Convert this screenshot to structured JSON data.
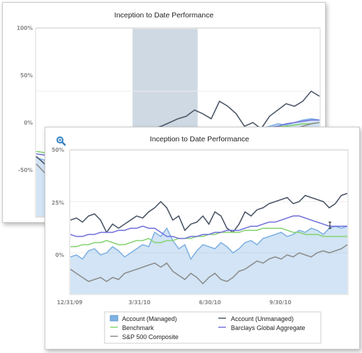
{
  "chart_data": [
    {
      "type": "line",
      "title": "Inception to Date Performance",
      "ylim": [
        -50,
        100
      ],
      "yticks": [
        "100%",
        "50%",
        "0%",
        "-50%"
      ],
      "highlight_band": {
        "from": 0.34,
        "to": 0.57,
        "color": "#c7d2de"
      },
      "series": [
        {
          "name": "Account (Managed)",
          "color": "#7fb1e3",
          "style": "area",
          "values": [
            -3,
            -5,
            -8,
            -6,
            -4,
            -2,
            -3,
            0,
            2,
            4,
            3,
            5,
            7,
            9,
            12,
            10,
            11,
            13,
            14,
            12,
            13,
            15,
            14,
            16,
            17,
            19,
            18,
            20,
            22,
            24,
            23,
            25,
            27,
            28,
            27
          ]
        },
        {
          "name": "Account (Unmanaged)",
          "color": "#4a5566",
          "style": "line",
          "values": [
            -2,
            -8,
            -12,
            -15,
            -10,
            -5,
            0,
            3,
            5,
            8,
            10,
            12,
            16,
            18,
            20,
            22,
            25,
            28,
            30,
            35,
            32,
            28,
            42,
            38,
            32,
            22,
            25,
            20,
            30,
            35,
            40,
            38,
            42,
            50,
            46
          ]
        },
        {
          "name": "Benchmark",
          "color": "#86d474",
          "style": "line",
          "values": [
            2,
            1,
            0,
            1,
            2,
            3,
            4,
            5,
            6,
            7,
            7,
            8,
            9,
            10,
            11,
            12,
            12,
            13,
            14,
            14,
            15,
            16,
            17,
            17,
            18,
            19,
            19,
            20,
            21,
            22,
            22,
            23,
            24,
            24,
            25
          ]
        },
        {
          "name": "Barclays Global Aggregate",
          "color": "#7474dd",
          "style": "line",
          "values": [
            0,
            -1,
            0,
            1,
            2,
            2,
            3,
            4,
            5,
            5,
            6,
            7,
            8,
            9,
            10,
            10,
            11,
            12,
            13,
            12,
            11,
            14,
            15,
            16,
            17,
            18,
            19,
            20,
            21,
            22,
            24,
            25,
            26,
            27,
            27
          ]
        },
        {
          "name": "S&P 500 Composite",
          "color": "#8c8c8c",
          "style": "line",
          "values": [
            -8,
            -15,
            -22,
            -25,
            -28,
            -30,
            -26,
            -22,
            -20,
            -15,
            -10,
            -5,
            0,
            2,
            -5,
            -10,
            -8,
            -5,
            -2,
            -4,
            -6,
            0,
            4,
            8,
            10,
            12,
            14,
            16,
            15,
            18,
            17,
            20,
            22,
            24,
            25
          ]
        }
      ]
    },
    {
      "type": "line",
      "title": "Inception to Date Performance",
      "xlabel": "",
      "ylabel": "",
      "ylim": [
        -20,
        50
      ],
      "yticks": [
        "50%",
        "25%",
        "0%"
      ],
      "x_tick_labels": [
        "12/31/09",
        "3/31/10",
        "6/30/10",
        "9/30/10"
      ],
      "zoom_icon": "magnifier-icon",
      "series": [
        {
          "name": "Account (Managed)",
          "color": "#7fb1e3",
          "style": "area",
          "values": [
            -2,
            -1,
            -3,
            1,
            2,
            -1,
            0,
            3,
            1,
            -2,
            0,
            2,
            4,
            3,
            10,
            8,
            12,
            6,
            2,
            4,
            -3,
            1,
            4,
            3,
            2,
            5,
            3,
            0,
            2,
            5,
            6,
            4,
            7,
            8,
            9,
            10,
            8,
            9,
            11,
            10,
            12,
            11,
            9,
            12,
            13,
            12,
            13
          ]
        },
        {
          "name": "Account (Unmanaged)",
          "color": "#4a5566",
          "style": "line",
          "values": [
            16,
            17,
            15,
            18,
            19,
            16,
            10,
            14,
            12,
            14,
            16,
            18,
            17,
            20,
            22,
            25,
            22,
            16,
            18,
            11,
            14,
            15,
            18,
            14,
            20,
            18,
            12,
            10,
            14,
            20,
            18,
            21,
            22,
            24,
            25,
            26,
            27,
            24,
            25,
            28,
            27,
            26,
            25,
            22,
            24,
            28,
            29
          ]
        },
        {
          "name": "Benchmark",
          "color": "#86d474",
          "style": "line",
          "values": [
            3,
            3,
            4,
            4,
            5,
            5,
            6,
            5,
            4,
            4,
            5,
            6,
            6,
            7,
            5,
            5,
            6,
            6,
            7,
            7,
            7,
            8,
            8,
            9,
            9,
            10,
            10,
            10,
            10,
            11,
            11,
            11,
            12,
            12,
            12,
            12,
            11,
            10,
            10,
            9,
            9,
            9,
            8,
            8,
            8,
            8,
            8
          ]
        },
        {
          "name": "Barclays Global Aggregate",
          "color": "#7474dd",
          "style": "line",
          "values": [
            9,
            8,
            8,
            9,
            9,
            10,
            10,
            10,
            11,
            11,
            12,
            12,
            13,
            12,
            12,
            10,
            8,
            8,
            7,
            7,
            8,
            8,
            9,
            9,
            10,
            10,
            11,
            11,
            11,
            12,
            13,
            13,
            14,
            15,
            15,
            16,
            17,
            18,
            18,
            17,
            16,
            15,
            14,
            13,
            13,
            13,
            13
          ]
        },
        {
          "name": "S&P 500 Composite",
          "color": "#8c8c8c",
          "style": "line",
          "values": [
            -8,
            -10,
            -12,
            -14,
            -13,
            -12,
            -14,
            -12,
            -13,
            -10,
            -9,
            -8,
            -7,
            -6,
            -5,
            -7,
            -5,
            -9,
            -11,
            -13,
            -10,
            -12,
            -15,
            -12,
            -10,
            -13,
            -14,
            -12,
            -9,
            -8,
            -6,
            -4,
            -5,
            -3,
            -2,
            -3,
            -1,
            -2,
            0,
            -1,
            -2,
            0,
            1,
            0,
            1,
            2,
            4
          ]
        }
      ]
    }
  ]
}
